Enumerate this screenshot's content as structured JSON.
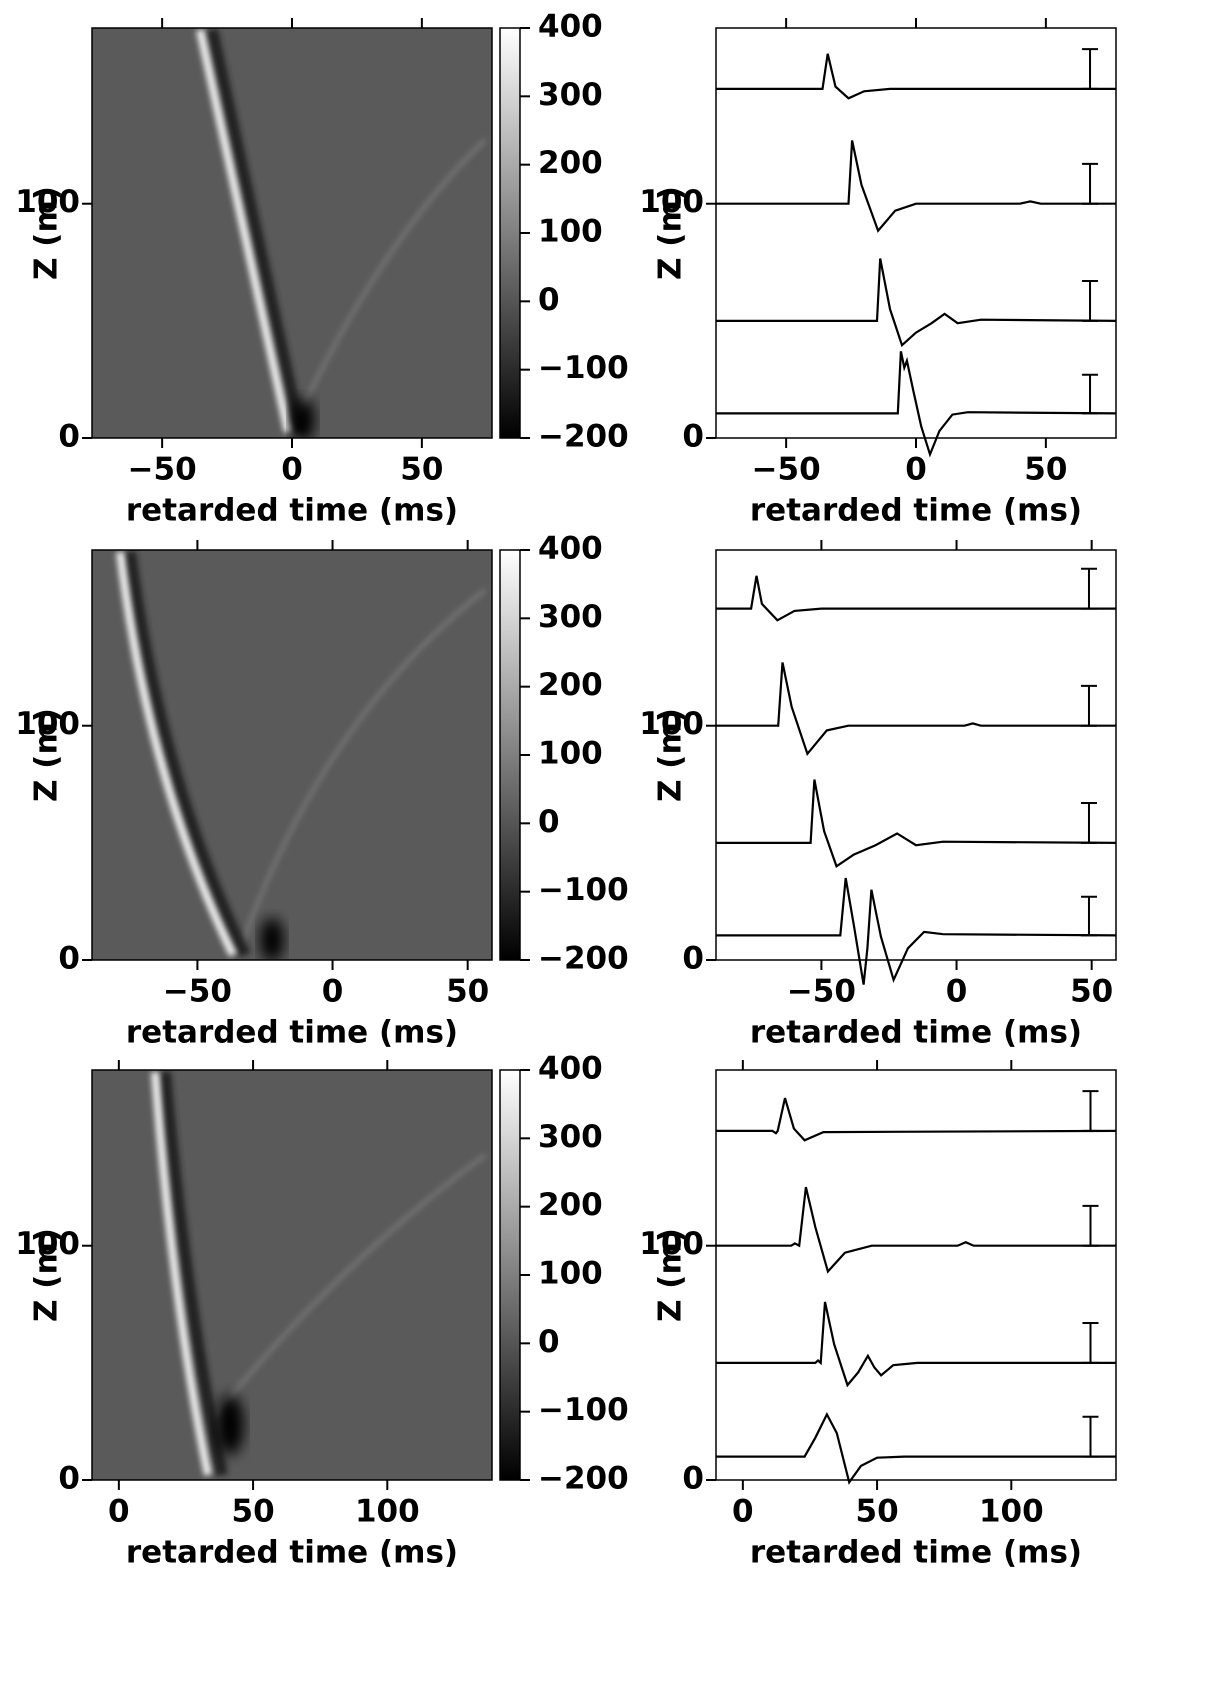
{
  "chart_data": [
    {
      "type": "heatmap",
      "xlabel": "retarded time (ms)",
      "ylabel": "Z (m)",
      "xlim": [
        -77,
        77
      ],
      "ylim": [
        0,
        175
      ],
      "xticks": [
        {
          "value": -50,
          "label": "−50"
        },
        0,
        50
      ],
      "yticks": [
        0,
        100
      ],
      "colorbar": {
        "lim": [
          -200,
          400
        ],
        "ticks": [
          {
            "value": -200,
            "label": "−200"
          },
          {
            "value": -100,
            "label": "−100"
          },
          0,
          100,
          200,
          300,
          400
        ]
      }
    },
    {
      "type": "line",
      "xlabel": "retarded time (ms)",
      "ylabel": "Z (m)",
      "xlim": [
        -77,
        77
      ],
      "ylim": [
        0,
        175
      ],
      "xticks": [
        {
          "value": -50,
          "label": "−50"
        },
        0,
        50
      ],
      "yticks": [
        0,
        100
      ],
      "series": [
        {
          "color": "#000000",
          "x": [
            -77,
            -36,
            -34,
            -31,
            -26,
            -20,
            -10,
            77
          ],
          "values": [
            149,
            149,
            164,
            150,
            145,
            148,
            149,
            149
          ]
        },
        {
          "color": "#000000",
          "x": [
            -77,
            -26,
            -24.6,
            -21,
            -14.6,
            -8,
            0,
            40,
            44,
            48,
            77
          ],
          "values": [
            100,
            100,
            127,
            108,
            88.5,
            97,
            100,
            100,
            101,
            100,
            100
          ]
        },
        {
          "color": "#000000",
          "x": [
            -77,
            -15,
            -13.8,
            -10,
            -5.4,
            0,
            6,
            11,
            16,
            25,
            77
          ],
          "values": [
            50,
            50,
            76.6,
            55,
            39.6,
            45,
            49,
            53,
            49,
            50.5,
            50
          ]
        },
        {
          "color": "#000000",
          "x": [
            -77,
            -7,
            -5.8,
            -4.5,
            -3.5,
            -1,
            2,
            5.4,
            9,
            14,
            20,
            77
          ],
          "values": [
            10.5,
            10.5,
            37,
            30,
            33,
            20,
            5,
            -7,
            3,
            10,
            11,
            10.5
          ]
        }
      ],
      "scale_bars": [
        {
          "x": 67,
          "y": [
            149,
            166
          ]
        },
        {
          "x": 67,
          "y": [
            100,
            117
          ]
        },
        {
          "x": 67,
          "y": [
            50,
            67
          ]
        },
        {
          "x": 67,
          "y": [
            10.5,
            27
          ]
        }
      ]
    },
    {
      "type": "heatmap",
      "xlabel": "retarded time (ms)",
      "ylabel": "Z (m)",
      "xlim": [
        -89,
        59
      ],
      "ylim": [
        0,
        175
      ],
      "xticks": [
        {
          "value": -50,
          "label": "−50"
        },
        0,
        50
      ],
      "yticks": [
        0,
        100
      ],
      "colorbar": {
        "lim": [
          -200,
          400
        ],
        "ticks": [
          {
            "value": -200,
            "label": "−200"
          },
          {
            "value": -100,
            "label": "−100"
          },
          0,
          100,
          200,
          300,
          400
        ]
      }
    },
    {
      "type": "line",
      "xlabel": "retarded time (ms)",
      "ylabel": "Z (m)",
      "xlim": [
        -89,
        59
      ],
      "ylim": [
        0,
        175
      ],
      "xticks": [
        {
          "value": -50,
          "label": "−50"
        },
        0,
        50
      ],
      "yticks": [
        0,
        100
      ],
      "series": [
        {
          "color": "#000000",
          "x": [
            -89,
            -76,
            -74,
            -72,
            -66.3,
            -60,
            -50,
            59
          ],
          "values": [
            150,
            150,
            164,
            152,
            145,
            149,
            150,
            150
          ]
        },
        {
          "color": "#000000",
          "x": [
            -89,
            -66,
            -64.4,
            -61,
            -55.2,
            -48,
            -40,
            3,
            6,
            9,
            59
          ],
          "values": [
            100,
            100,
            127,
            108,
            88,
            98,
            100,
            100,
            101,
            100,
            100
          ]
        },
        {
          "color": "#000000",
          "x": [
            -89,
            -54,
            -52.6,
            -49,
            -44.4,
            -38,
            -30,
            -22,
            -15,
            -5,
            59
          ],
          "values": [
            50,
            50,
            77,
            55,
            40,
            45,
            49,
            54,
            49,
            50.5,
            50
          ]
        },
        {
          "color": "#000000",
          "x": [
            -89,
            -43,
            -41,
            -38,
            -34.4,
            -33,
            -31.5,
            -28,
            -23.3,
            -18,
            -12,
            -5,
            59
          ],
          "values": [
            10.5,
            10.5,
            35,
            15,
            -10.5,
            5,
            30,
            10,
            -8.5,
            5,
            12,
            11,
            10.5
          ]
        }
      ],
      "scale_bars": [
        {
          "x": 49,
          "y": [
            150,
            167
          ]
        },
        {
          "x": 49,
          "y": [
            100,
            117
          ]
        },
        {
          "x": 49,
          "y": [
            50,
            67
          ]
        },
        {
          "x": 49,
          "y": [
            10.5,
            27
          ]
        }
      ]
    },
    {
      "type": "heatmap",
      "xlabel": "retarded time (ms)",
      "ylabel": "Z (m)",
      "xlim": [
        -10,
        139
      ],
      "ylim": [
        0,
        175
      ],
      "xticks": [
        0,
        50,
        100
      ],
      "yticks": [
        0,
        100
      ],
      "colorbar": {
        "lim": [
          -200,
          400
        ],
        "ticks": [
          {
            "value": -200,
            "label": "−200"
          },
          {
            "value": -100,
            "label": "−100"
          },
          0,
          100,
          200,
          300,
          400
        ]
      }
    },
    {
      "type": "line",
      "xlabel": "retarded time (ms)",
      "ylabel": "Z (m)",
      "xlim": [
        -10,
        139
      ],
      "ylim": [
        0,
        175
      ],
      "xticks": [
        0,
        50,
        100
      ],
      "yticks": [
        0,
        100
      ],
      "series": [
        {
          "color": "#000000",
          "x": [
            -10,
            11,
            12.3,
            13,
            15.7,
            19,
            23,
            30,
            139
          ],
          "values": [
            149,
            149,
            148,
            149,
            163,
            150,
            145,
            148.5,
            149
          ]
        },
        {
          "color": "#000000",
          "x": [
            -10,
            18,
            19.4,
            21,
            23.5,
            27,
            31.7,
            38,
            48,
            80,
            83,
            86,
            139
          ],
          "values": [
            100,
            100,
            101,
            100,
            125,
            108,
            89,
            97,
            100,
            100,
            101.5,
            100,
            100
          ]
        },
        {
          "color": "#000000",
          "x": [
            -10,
            27,
            28,
            29,
            30.6,
            34,
            39,
            43,
            46.6,
            49,
            51.5,
            56,
            65,
            139
          ],
          "values": [
            50,
            50,
            51,
            50,
            76,
            58,
            40.5,
            46,
            53,
            48,
            44.7,
            49,
            50,
            50
          ]
        },
        {
          "color": "#000000",
          "x": [
            -10,
            23,
            27,
            31.3,
            35,
            39.6,
            44,
            50,
            60,
            139
          ],
          "values": [
            10,
            10,
            18,
            28,
            20,
            -1,
            6,
            9.5,
            10,
            10
          ]
        }
      ],
      "scale_bars": [
        {
          "x": 129.5,
          "y": [
            149,
            166
          ]
        },
        {
          "x": 129.5,
          "y": [
            100,
            117
          ]
        },
        {
          "x": 129.5,
          "y": [
            50,
            67
          ]
        },
        {
          "x": 129.5,
          "y": [
            10,
            27
          ]
        }
      ]
    }
  ]
}
